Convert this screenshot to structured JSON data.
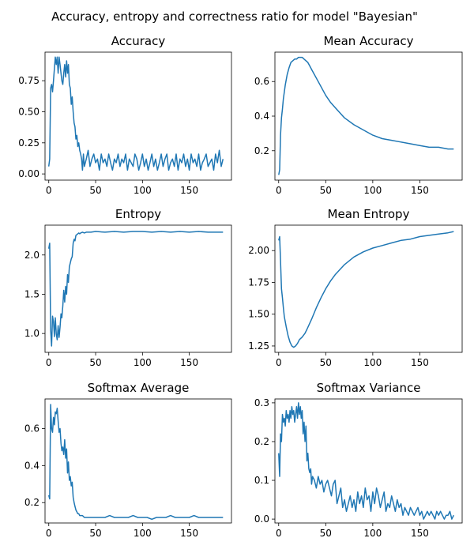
{
  "figure": {
    "title": "Accuracy, entropy and correctness ratio for model \"Bayesian\"",
    "line_color": "#1f77b4"
  },
  "chart_data": [
    {
      "type": "line",
      "title": "Accuracy",
      "xlim": [
        -4,
        195
      ],
      "ylim": [
        -0.05,
        0.98
      ],
      "xticks": [
        0,
        50,
        100,
        150
      ],
      "yticks": [
        0.0,
        0.25,
        0.5,
        0.75
      ],
      "ytick_labels": [
        "0.00",
        "0.25",
        "0.50",
        "0.75"
      ],
      "x": [
        0,
        1,
        2,
        3,
        4,
        5,
        6,
        7,
        8,
        9,
        10,
        11,
        12,
        13,
        14,
        15,
        16,
        17,
        18,
        19,
        20,
        21,
        22,
        23,
        24,
        25,
        26,
        27,
        28,
        29,
        30,
        31,
        32,
        33,
        34,
        35,
        36,
        37,
        38,
        39,
        40,
        42,
        44,
        46,
        48,
        50,
        52,
        54,
        56,
        58,
        60,
        62,
        64,
        66,
        68,
        70,
        72,
        74,
        76,
        78,
        80,
        82,
        84,
        86,
        88,
        90,
        92,
        94,
        96,
        98,
        100,
        102,
        104,
        106,
        108,
        110,
        112,
        114,
        116,
        118,
        120,
        122,
        124,
        126,
        128,
        130,
        132,
        134,
        136,
        138,
        140,
        142,
        144,
        146,
        148,
        150,
        152,
        154,
        156,
        158,
        160,
        162,
        164,
        166,
        168,
        170,
        172,
        174,
        176,
        178,
        180,
        182,
        184,
        186
      ],
      "y": [
        0.06,
        0.12,
        0.69,
        0.72,
        0.66,
        0.75,
        0.85,
        0.94,
        0.88,
        0.94,
        0.81,
        0.94,
        0.88,
        0.81,
        0.75,
        0.72,
        0.81,
        0.88,
        0.78,
        0.91,
        0.81,
        0.88,
        0.72,
        0.69,
        0.56,
        0.62,
        0.5,
        0.41,
        0.38,
        0.28,
        0.31,
        0.22,
        0.25,
        0.19,
        0.16,
        0.12,
        0.03,
        0.16,
        0.06,
        0.09,
        0.12,
        0.19,
        0.06,
        0.12,
        0.16,
        0.09,
        0.12,
        0.03,
        0.16,
        0.09,
        0.12,
        0.06,
        0.16,
        0.09,
        0.03,
        0.12,
        0.09,
        0.16,
        0.06,
        0.12,
        0.09,
        0.16,
        0.03,
        0.12,
        0.09,
        0.06,
        0.16,
        0.12,
        0.03,
        0.09,
        0.16,
        0.06,
        0.12,
        0.03,
        0.09,
        0.16,
        0.06,
        0.12,
        0.03,
        0.09,
        0.16,
        0.06,
        0.12,
        0.16,
        0.03,
        0.09,
        0.12,
        0.06,
        0.16,
        0.03,
        0.12,
        0.09,
        0.16,
        0.06,
        0.12,
        0.03,
        0.16,
        0.09,
        0.12,
        0.06,
        0.16,
        0.03,
        0.09,
        0.12,
        0.16,
        0.06,
        0.09,
        0.12,
        0.03,
        0.16,
        0.09,
        0.19,
        0.06,
        0.12
      ]
    },
    {
      "type": "line",
      "title": "Mean Accuracy",
      "xlim": [
        -4,
        195
      ],
      "ylim": [
        0.03,
        0.77
      ],
      "xticks": [
        0,
        50,
        100,
        150
      ],
      "yticks": [
        0.2,
        0.4,
        0.6
      ],
      "ytick_labels": [
        "0.2",
        "0.4",
        "0.6"
      ],
      "x": [
        0,
        1,
        2,
        3,
        4,
        5,
        7,
        9,
        11,
        13,
        15,
        17,
        19,
        21,
        23,
        25,
        27,
        29,
        31,
        33,
        35,
        40,
        45,
        50,
        55,
        60,
        70,
        80,
        90,
        100,
        110,
        120,
        130,
        140,
        150,
        160,
        170,
        180,
        186
      ],
      "y": [
        0.06,
        0.09,
        0.29,
        0.39,
        0.44,
        0.5,
        0.58,
        0.64,
        0.68,
        0.71,
        0.72,
        0.73,
        0.73,
        0.74,
        0.74,
        0.74,
        0.73,
        0.72,
        0.71,
        0.69,
        0.67,
        0.62,
        0.57,
        0.52,
        0.48,
        0.45,
        0.39,
        0.35,
        0.32,
        0.29,
        0.27,
        0.26,
        0.25,
        0.24,
        0.23,
        0.22,
        0.22,
        0.21,
        0.21
      ]
    },
    {
      "type": "line",
      "title": "Entropy",
      "xlim": [
        -4,
        195
      ],
      "ylim": [
        0.76,
        2.38
      ],
      "xticks": [
        0,
        50,
        100,
        150
      ],
      "yticks": [
        1.0,
        1.5,
        2.0
      ],
      "ytick_labels": [
        "1.0",
        "1.5",
        "2.0"
      ],
      "x": [
        0,
        1,
        2,
        3,
        4,
        5,
        6,
        7,
        8,
        9,
        10,
        11,
        12,
        13,
        14,
        15,
        16,
        17,
        18,
        19,
        20,
        21,
        22,
        23,
        24,
        25,
        26,
        27,
        28,
        29,
        30,
        31,
        32,
        33,
        34,
        36,
        38,
        40,
        45,
        50,
        60,
        70,
        80,
        90,
        100,
        110,
        120,
        130,
        140,
        150,
        160,
        170,
        180,
        186
      ],
      "y": [
        2.08,
        2.15,
        1.05,
        0.84,
        1.22,
        1.15,
        0.96,
        1.2,
        1.0,
        0.92,
        1.1,
        0.95,
        1.08,
        1.25,
        1.2,
        1.35,
        1.55,
        1.4,
        1.6,
        1.5,
        1.75,
        1.65,
        1.85,
        1.9,
        1.95,
        1.98,
        2.15,
        2.2,
        2.18,
        2.25,
        2.26,
        2.27,
        2.28,
        2.27,
        2.28,
        2.29,
        2.28,
        2.29,
        2.29,
        2.3,
        2.29,
        2.3,
        2.29,
        2.3,
        2.3,
        2.29,
        2.3,
        2.29,
        2.3,
        2.29,
        2.3,
        2.29,
        2.29,
        2.29
      ]
    },
    {
      "type": "line",
      "title": "Mean Entropy",
      "xlim": [
        -4,
        195
      ],
      "ylim": [
        1.2,
        2.2
      ],
      "xticks": [
        0,
        50,
        100,
        150
      ],
      "yticks": [
        1.25,
        1.5,
        1.75,
        2.0
      ],
      "ytick_labels": [
        "1.25",
        "1.50",
        "1.75",
        "2.00"
      ],
      "x": [
        0,
        1,
        2,
        3,
        4,
        5,
        6,
        8,
        10,
        12,
        14,
        16,
        18,
        20,
        22,
        25,
        28,
        30,
        35,
        40,
        45,
        50,
        55,
        60,
        70,
        80,
        90,
        100,
        110,
        120,
        130,
        140,
        150,
        160,
        170,
        180,
        186
      ],
      "y": [
        2.08,
        2.11,
        1.92,
        1.7,
        1.63,
        1.55,
        1.48,
        1.4,
        1.33,
        1.28,
        1.25,
        1.24,
        1.25,
        1.27,
        1.3,
        1.32,
        1.35,
        1.38,
        1.46,
        1.55,
        1.63,
        1.7,
        1.76,
        1.81,
        1.89,
        1.95,
        1.99,
        2.02,
        2.04,
        2.06,
        2.08,
        2.09,
        2.11,
        2.12,
        2.13,
        2.14,
        2.15
      ]
    },
    {
      "type": "line",
      "title": "Softmax Average",
      "xlim": [
        -4,
        195
      ],
      "ylim": [
        0.09,
        0.76
      ],
      "xticks": [
        0,
        50,
        100,
        150
      ],
      "yticks": [
        0.2,
        0.4,
        0.6
      ],
      "ytick_labels": [
        "0.2",
        "0.4",
        "0.6"
      ],
      "x": [
        0,
        1,
        2,
        3,
        4,
        5,
        6,
        7,
        8,
        9,
        10,
        11,
        12,
        13,
        14,
        15,
        16,
        17,
        18,
        19,
        20,
        21,
        22,
        23,
        24,
        25,
        26,
        27,
        28,
        29,
        30,
        31,
        32,
        33,
        34,
        36,
        38,
        40,
        45,
        50,
        55,
        60,
        65,
        70,
        75,
        80,
        85,
        90,
        95,
        100,
        105,
        110,
        115,
        120,
        125,
        130,
        135,
        140,
        145,
        150,
        155,
        160,
        165,
        170,
        175,
        180,
        186
      ],
      "y": [
        0.24,
        0.22,
        0.73,
        0.6,
        0.58,
        0.66,
        0.62,
        0.69,
        0.68,
        0.71,
        0.64,
        0.58,
        0.6,
        0.52,
        0.48,
        0.5,
        0.46,
        0.54,
        0.44,
        0.49,
        0.36,
        0.42,
        0.32,
        0.34,
        0.29,
        0.31,
        0.23,
        0.2,
        0.18,
        0.16,
        0.15,
        0.14,
        0.14,
        0.13,
        0.13,
        0.13,
        0.12,
        0.12,
        0.12,
        0.12,
        0.12,
        0.12,
        0.13,
        0.12,
        0.12,
        0.12,
        0.12,
        0.13,
        0.12,
        0.12,
        0.12,
        0.11,
        0.12,
        0.12,
        0.12,
        0.13,
        0.12,
        0.12,
        0.12,
        0.12,
        0.13,
        0.12,
        0.12,
        0.12,
        0.12,
        0.12,
        0.12
      ]
    },
    {
      "type": "line",
      "title": "Softmax Variance",
      "xlim": [
        -4,
        195
      ],
      "ylim": [
        -0.01,
        0.31
      ],
      "xticks": [
        0,
        50,
        100,
        150
      ],
      "yticks": [
        0.0,
        0.1,
        0.2,
        0.3
      ],
      "ytick_labels": [
        "0.0",
        "0.1",
        "0.2",
        "0.3"
      ],
      "x": [
        0,
        1,
        2,
        3,
        4,
        5,
        6,
        7,
        8,
        9,
        10,
        11,
        12,
        13,
        14,
        15,
        16,
        17,
        18,
        19,
        20,
        21,
        22,
        23,
        24,
        25,
        26,
        27,
        28,
        29,
        30,
        31,
        32,
        33,
        34,
        35,
        36,
        38,
        40,
        42,
        44,
        46,
        48,
        50,
        52,
        54,
        56,
        58,
        60,
        62,
        64,
        66,
        68,
        70,
        72,
        74,
        76,
        78,
        80,
        82,
        84,
        86,
        88,
        90,
        92,
        94,
        96,
        98,
        100,
        102,
        104,
        106,
        108,
        110,
        112,
        114,
        116,
        118,
        120,
        122,
        124,
        126,
        128,
        130,
        132,
        134,
        136,
        138,
        140,
        142,
        144,
        146,
        148,
        150,
        152,
        154,
        156,
        158,
        160,
        162,
        164,
        166,
        168,
        170,
        172,
        174,
        176,
        178,
        180,
        182,
        184,
        186
      ],
      "y": [
        0.17,
        0.11,
        0.22,
        0.2,
        0.27,
        0.25,
        0.26,
        0.24,
        0.28,
        0.26,
        0.27,
        0.25,
        0.28,
        0.26,
        0.29,
        0.27,
        0.28,
        0.25,
        0.27,
        0.29,
        0.26,
        0.3,
        0.27,
        0.29,
        0.26,
        0.28,
        0.22,
        0.25,
        0.2,
        0.24,
        0.15,
        0.17,
        0.13,
        0.12,
        0.13,
        0.09,
        0.11,
        0.1,
        0.08,
        0.11,
        0.09,
        0.1,
        0.07,
        0.09,
        0.1,
        0.08,
        0.06,
        0.09,
        0.1,
        0.04,
        0.06,
        0.08,
        0.03,
        0.05,
        0.02,
        0.04,
        0.06,
        0.03,
        0.05,
        0.02,
        0.07,
        0.04,
        0.06,
        0.03,
        0.08,
        0.05,
        0.06,
        0.02,
        0.07,
        0.04,
        0.08,
        0.06,
        0.03,
        0.05,
        0.07,
        0.02,
        0.04,
        0.03,
        0.06,
        0.04,
        0.02,
        0.05,
        0.03,
        0.04,
        0.01,
        0.03,
        0.02,
        0.01,
        0.03,
        0.02,
        0.01,
        0.02,
        0.03,
        0.01,
        0.02,
        0.0,
        0.01,
        0.02,
        0.01,
        0.02,
        0.01,
        0.0,
        0.02,
        0.01,
        0.02,
        0.01,
        0.0,
        0.01,
        0.01,
        0.02,
        0.0,
        0.01
      ]
    }
  ]
}
